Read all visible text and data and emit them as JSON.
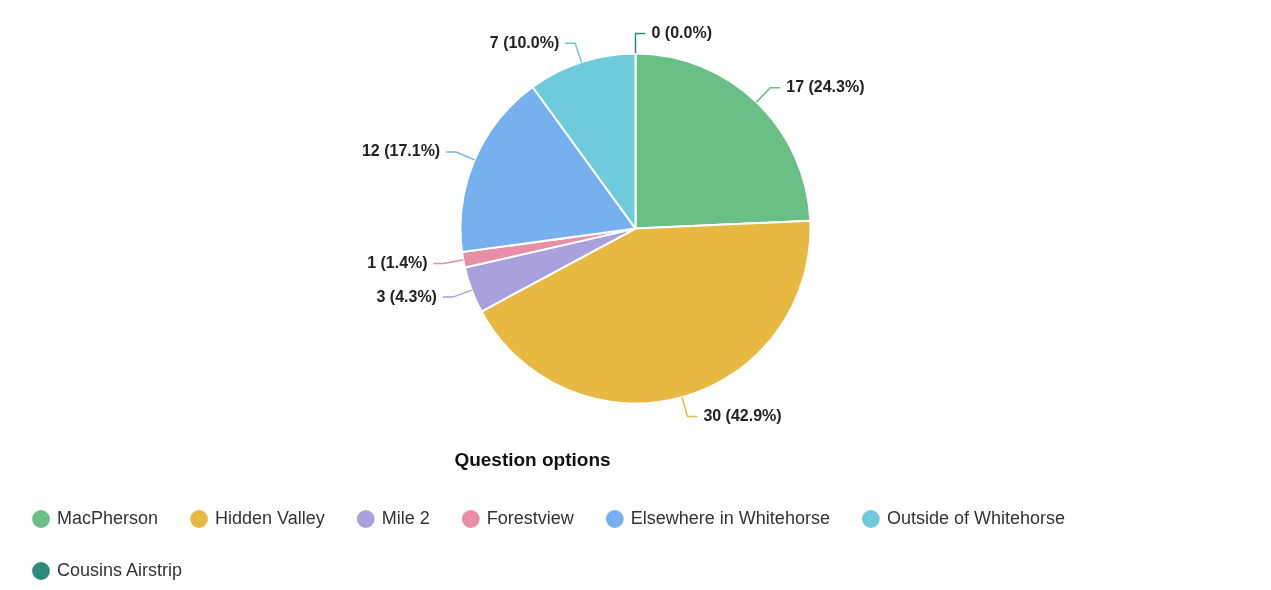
{
  "chart_data": {
    "type": "pie",
    "legend_title": "Question options",
    "legend": "bottom left",
    "categories": [
      "MacPherson",
      "Hidden Valley",
      "Mile 2",
      "Forestview",
      "Elsewhere in Whitehorse",
      "Outside of Whitehorse",
      "Cousins Airstrip"
    ],
    "values": [
      17,
      30,
      3,
      1,
      12,
      7,
      0
    ],
    "value_labels": [
      "17 (24.3%)",
      "30 (42.9%)",
      "3 (4.3%)",
      "1 (1.4%)",
      "12 (17.1%)",
      "7 (10.0%)",
      "0 (0.0%)"
    ],
    "colors": [
      "#6abf85",
      "#e8b942",
      "#a9a0dc",
      "#e68fa6",
      "#76b0ef",
      "#6fcadb",
      "#2f8a7c"
    ]
  }
}
